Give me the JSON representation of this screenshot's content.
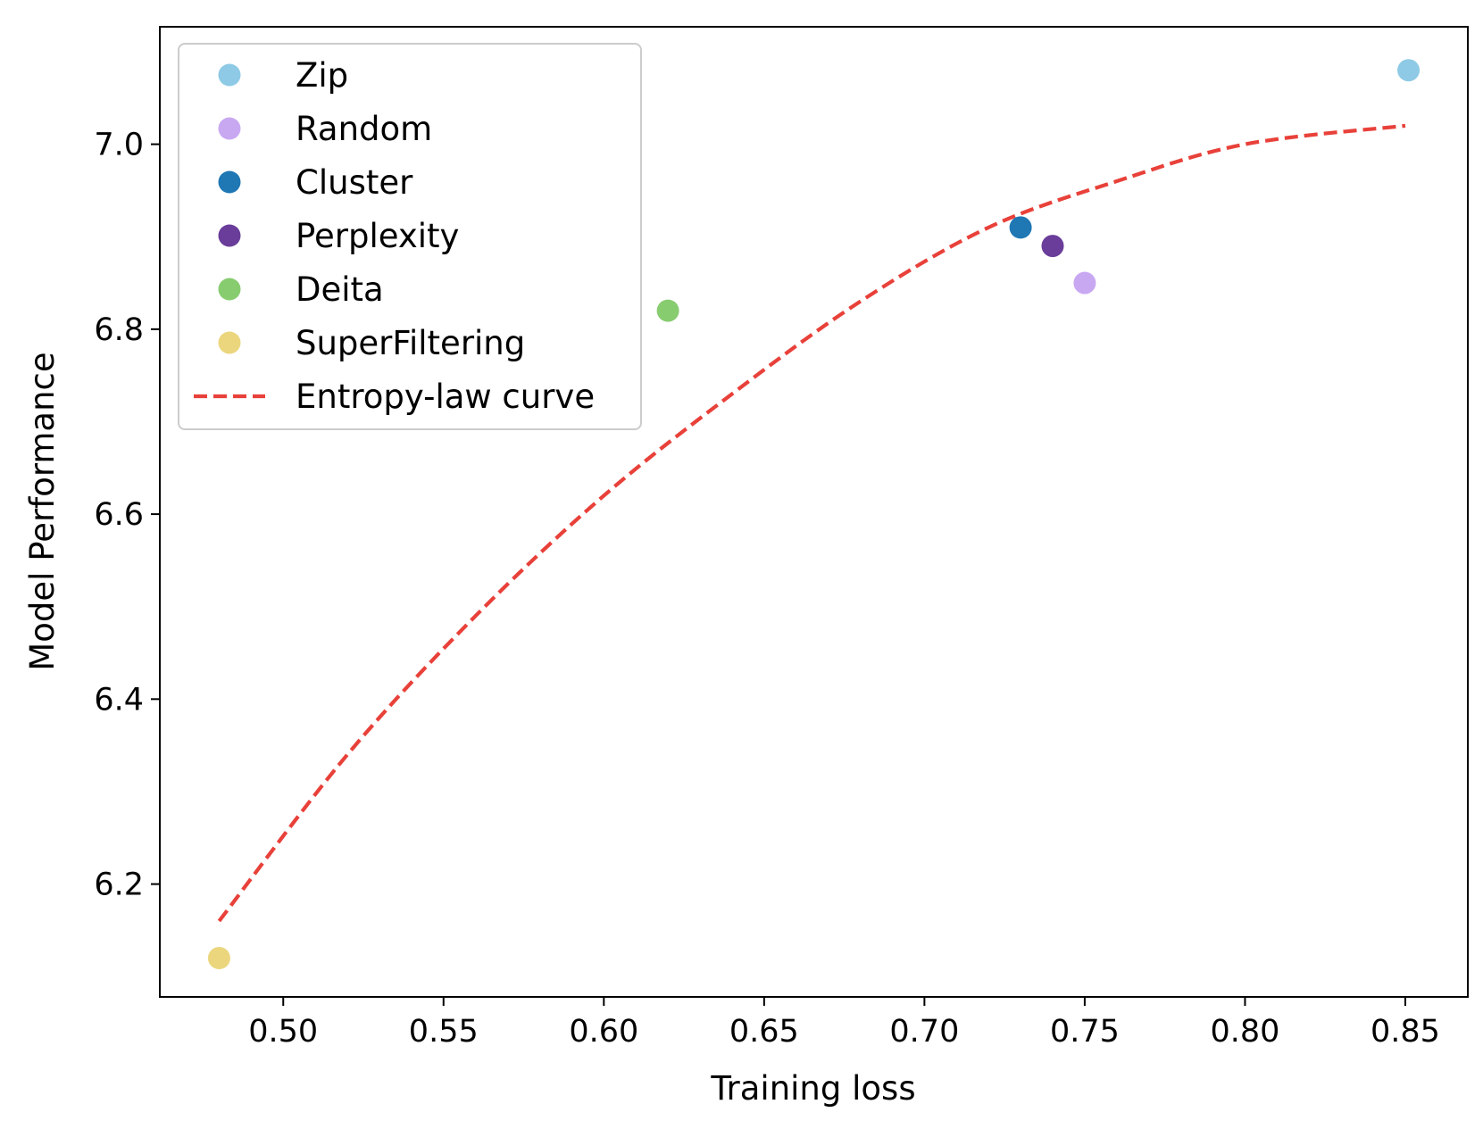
{
  "chart_data": {
    "type": "scatter",
    "title": "",
    "xlabel": "Training loss",
    "ylabel": "Model Performance",
    "xlim": [
      0.4615,
      0.8695
    ],
    "ylim": [
      6.078,
      7.127
    ],
    "x_ticks": [
      "0.50",
      "0.55",
      "0.60",
      "0.65",
      "0.70",
      "0.75",
      "0.80",
      "0.85"
    ],
    "y_ticks": [
      "6.2",
      "6.4",
      "6.6",
      "6.8",
      "7.0"
    ],
    "grid": false,
    "legend_position": "upper left",
    "series": [
      {
        "name": "Zip",
        "color": "#8ecae6",
        "points": [
          {
            "x": 0.851,
            "y": 7.08
          }
        ]
      },
      {
        "name": "Random",
        "color": "#c9a8f2",
        "points": [
          {
            "x": 0.75,
            "y": 6.85
          }
        ]
      },
      {
        "name": "Cluster",
        "color": "#1f77b4",
        "points": [
          {
            "x": 0.73,
            "y": 6.91
          }
        ]
      },
      {
        "name": "Perplexity",
        "color": "#6a3d9a",
        "points": [
          {
            "x": 0.74,
            "y": 6.89
          }
        ]
      },
      {
        "name": "Deita",
        "color": "#88cc70",
        "points": [
          {
            "x": 0.62,
            "y": 6.82
          }
        ]
      },
      {
        "name": "SuperFiltering",
        "color": "#ebd67e",
        "points": [
          {
            "x": 0.48,
            "y": 6.12
          }
        ]
      }
    ],
    "curve": {
      "name": "Entropy-law curve",
      "color": "#e8413a",
      "style": "dashed",
      "points": [
        {
          "x": 0.48,
          "y": 6.16
        },
        {
          "x": 0.52,
          "y": 6.34
        },
        {
          "x": 0.56,
          "y": 6.49
        },
        {
          "x": 0.6,
          "y": 6.62
        },
        {
          "x": 0.64,
          "y": 6.73
        },
        {
          "x": 0.68,
          "y": 6.83
        },
        {
          "x": 0.72,
          "y": 6.91
        },
        {
          "x": 0.76,
          "y": 6.96
        },
        {
          "x": 0.8,
          "y": 7.0
        },
        {
          "x": 0.85,
          "y": 7.02
        }
      ]
    }
  }
}
